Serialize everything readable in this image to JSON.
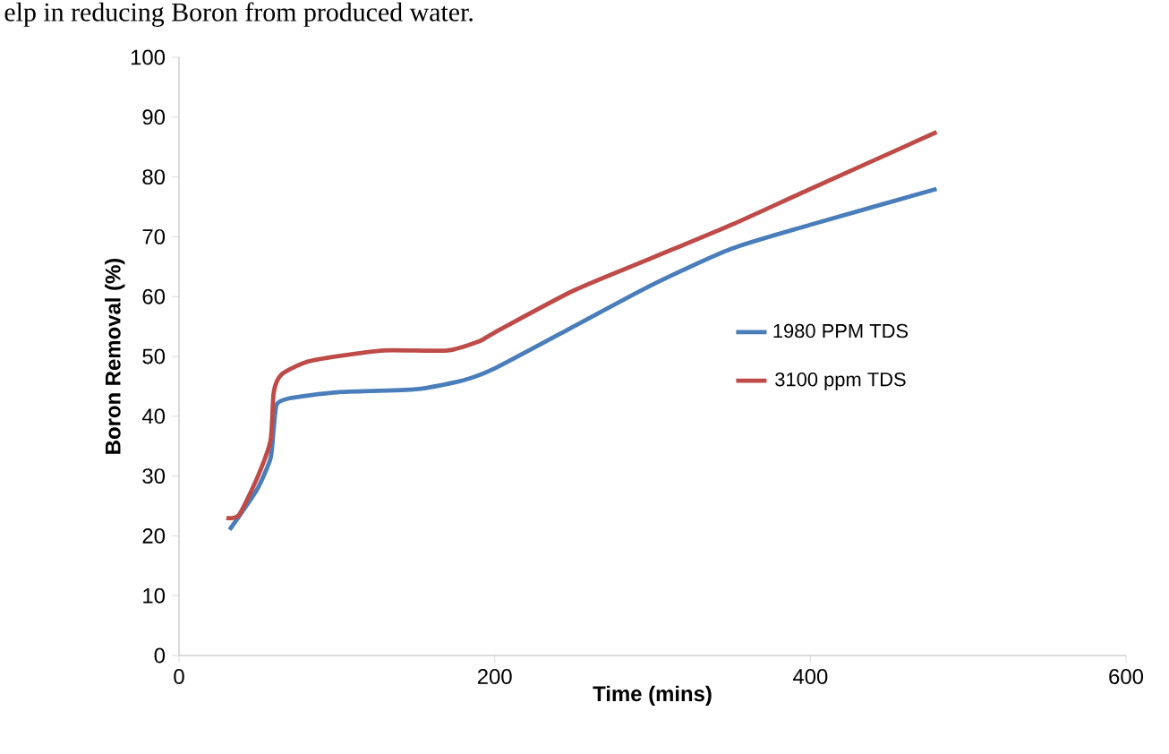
{
  "chart_data": {
    "type": "line",
    "xlabel": "Time (mins)",
    "ylabel": "Boron Removal (%)",
    "annotations": [
      "elp in reducing Boron from produced water."
    ],
    "xlim": [
      0,
      600
    ],
    "xticks": [
      0,
      200,
      400,
      600
    ],
    "ylim": [
      0,
      100
    ],
    "yticks": [
      0,
      10,
      20,
      30,
      40,
      50,
      60,
      70,
      80,
      90,
      100
    ],
    "grid": false,
    "legend": "right",
    "marker": "none",
    "line_style": "solid",
    "series": [
      {
        "name": "1980 PPM TDS",
        "color": "#4a7ebb",
        "x": [
          32,
          40,
          50,
          58,
          60,
          62,
          70,
          100,
          150,
          180,
          200,
          250,
          300,
          350,
          400,
          480
        ],
        "values": [
          21,
          24,
          28,
          33,
          38,
          42,
          43,
          44,
          44.5,
          46,
          48,
          55,
          62,
          68,
          72,
          78
        ]
      },
      {
        "name": "3100 ppm TDS",
        "color": "#be4b48",
        "x": [
          30,
          38,
          50,
          58,
          60,
          65,
          80,
          100,
          130,
          170,
          190,
          200,
          250,
          300,
          350,
          400,
          480
        ],
        "values": [
          23,
          23.5,
          30,
          36,
          44,
          47,
          49,
          50,
          51,
          51,
          52.5,
          54,
          61,
          66.5,
          72,
          78,
          87.5
        ]
      }
    ]
  }
}
